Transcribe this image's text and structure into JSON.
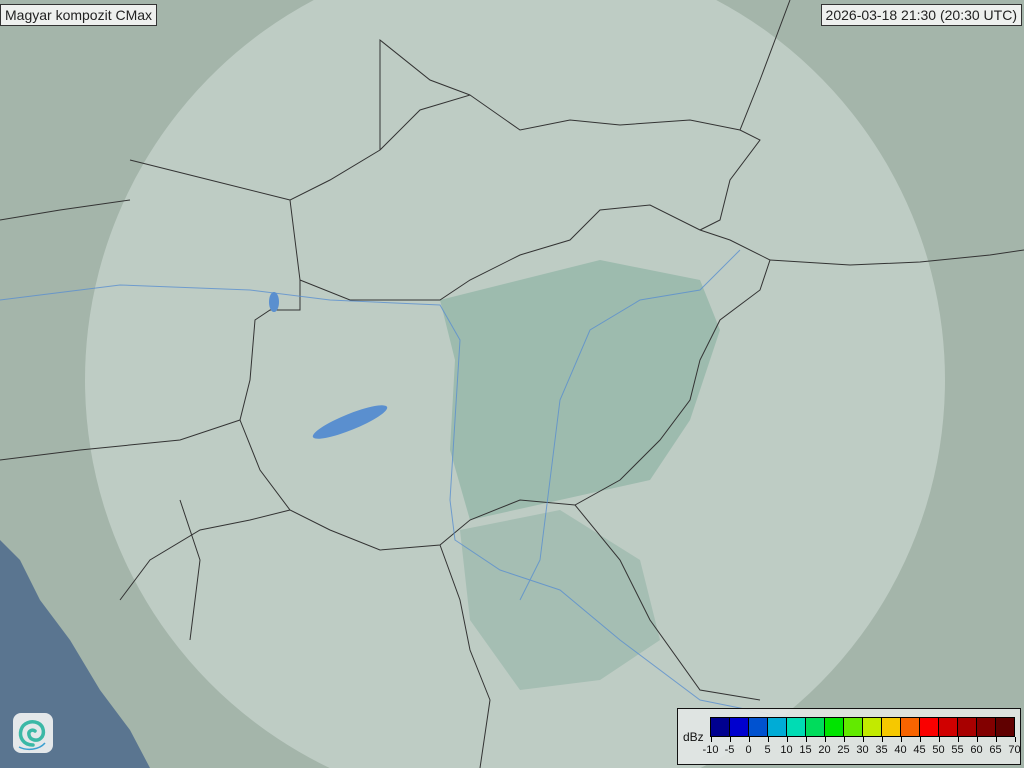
{
  "title": "Magyar kompozit  CMax",
  "timestamp": "2026-03-18 21:30 (20:30 UTC)",
  "legend": {
    "unit": "dBz",
    "ticks": [
      "-10",
      "-5",
      "0",
      "5",
      "10",
      "15",
      "20",
      "25",
      "30",
      "35",
      "40",
      "45",
      "50",
      "55",
      "60",
      "65",
      "70"
    ],
    "colors": [
      "#00008f",
      "#0000cf",
      "#0052d0",
      "#00acd6",
      "#00dcb4",
      "#00dc5c",
      "#00e400",
      "#62ea00",
      "#c2ea00",
      "#f6c800",
      "#f86400",
      "#fa0000",
      "#d00000",
      "#a80000",
      "#820000",
      "#600000"
    ]
  },
  "map": {
    "terrain_color": "#a4b5aa",
    "radar_coverage_color": "#c8d6cf",
    "hungary_fill": "#8fb3a5",
    "sea_color": "#5a7590",
    "border_color": "#333333",
    "river_color": "#5a8fcf"
  },
  "logo": "met-service-swirl-logo"
}
